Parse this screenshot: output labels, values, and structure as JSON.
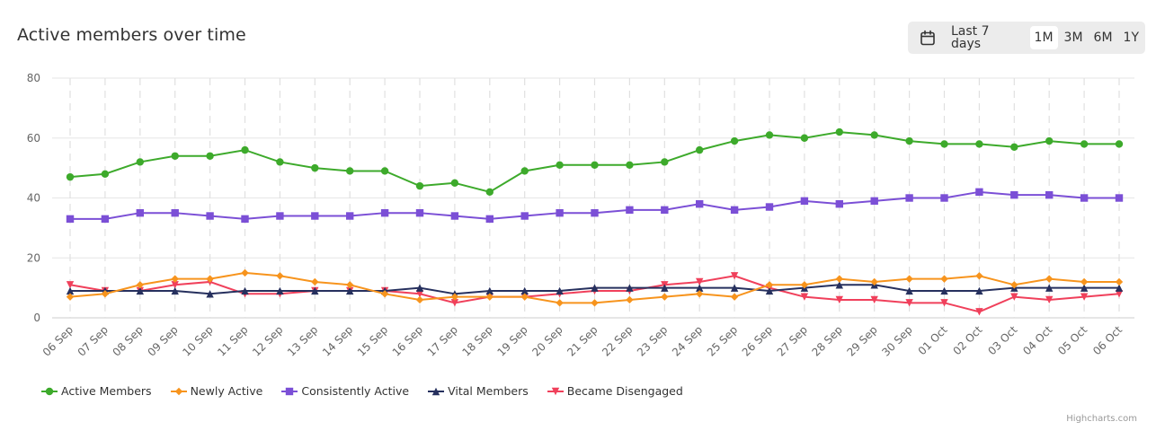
{
  "header": {
    "title": "Active members over time",
    "range_selector": {
      "buttons": [
        "Last 7 days",
        "1M",
        "3M",
        "6M",
        "1Y"
      ],
      "selected": "1M"
    }
  },
  "credit": "Highcharts.com",
  "colors": {
    "Active Members": "#3daa2b",
    "Newly Active": "#f7941d",
    "Consistently Active": "#7b4fd6",
    "Vital Members": "#26305e",
    "Became Disengaged": "#f0405b"
  },
  "chart_data": {
    "type": "line",
    "title": "Active members over time",
    "xlabel": "",
    "ylabel": "",
    "ylim": [
      0,
      80
    ],
    "yticks": [
      0,
      20,
      40,
      60,
      80
    ],
    "grid": true,
    "legend_position": "bottom-left",
    "categories": [
      "06 Sep",
      "07 Sep",
      "08 Sep",
      "09 Sep",
      "10 Sep",
      "11 Sep",
      "12 Sep",
      "13 Sep",
      "14 Sep",
      "15 Sep",
      "16 Sep",
      "17 Sep",
      "18 Sep",
      "19 Sep",
      "20 Sep",
      "21 Sep",
      "22 Sep",
      "23 Sep",
      "24 Sep",
      "25 Sep",
      "26 Sep",
      "27 Sep",
      "28 Sep",
      "29 Sep",
      "30 Sep",
      "01 Oct",
      "02 Oct",
      "03 Oct",
      "04 Oct",
      "05 Oct",
      "06 Oct"
    ],
    "series": [
      {
        "name": "Active Members",
        "marker": "circle",
        "values": [
          47,
          48,
          52,
          54,
          54,
          56,
          52,
          50,
          49,
          49,
          44,
          45,
          42,
          49,
          51,
          51,
          51,
          52,
          56,
          59,
          61,
          60,
          62,
          61,
          59,
          58,
          58,
          57,
          59,
          58,
          58
        ]
      },
      {
        "name": "Newly Active",
        "marker": "diamond",
        "values": [
          7,
          8,
          11,
          13,
          13,
          15,
          14,
          12,
          11,
          8,
          6,
          7,
          7,
          7,
          5,
          5,
          6,
          7,
          8,
          7,
          11,
          11,
          13,
          12,
          13,
          13,
          14,
          11,
          13,
          12,
          12
        ]
      },
      {
        "name": "Consistently Active",
        "marker": "square",
        "values": [
          33,
          33,
          35,
          35,
          34,
          33,
          34,
          34,
          34,
          35,
          35,
          34,
          33,
          34,
          35,
          35,
          36,
          36,
          38,
          36,
          37,
          39,
          38,
          39,
          40,
          40,
          42,
          41,
          41,
          40,
          40
        ]
      },
      {
        "name": "Vital Members",
        "marker": "triangle",
        "values": [
          9,
          9,
          9,
          9,
          8,
          9,
          9,
          9,
          9,
          9,
          10,
          8,
          9,
          9,
          9,
          10,
          10,
          10,
          10,
          10,
          9,
          10,
          11,
          11,
          9,
          9,
          9,
          10,
          10,
          10,
          10
        ]
      },
      {
        "name": "Became Disengaged",
        "marker": "triangle-down",
        "values": [
          11,
          9,
          9,
          11,
          12,
          8,
          8,
          9,
          9,
          9,
          8,
          5,
          7,
          7,
          8,
          9,
          9,
          11,
          12,
          14,
          10,
          7,
          6,
          6,
          5,
          5,
          2,
          7,
          6,
          7,
          8
        ]
      }
    ]
  }
}
